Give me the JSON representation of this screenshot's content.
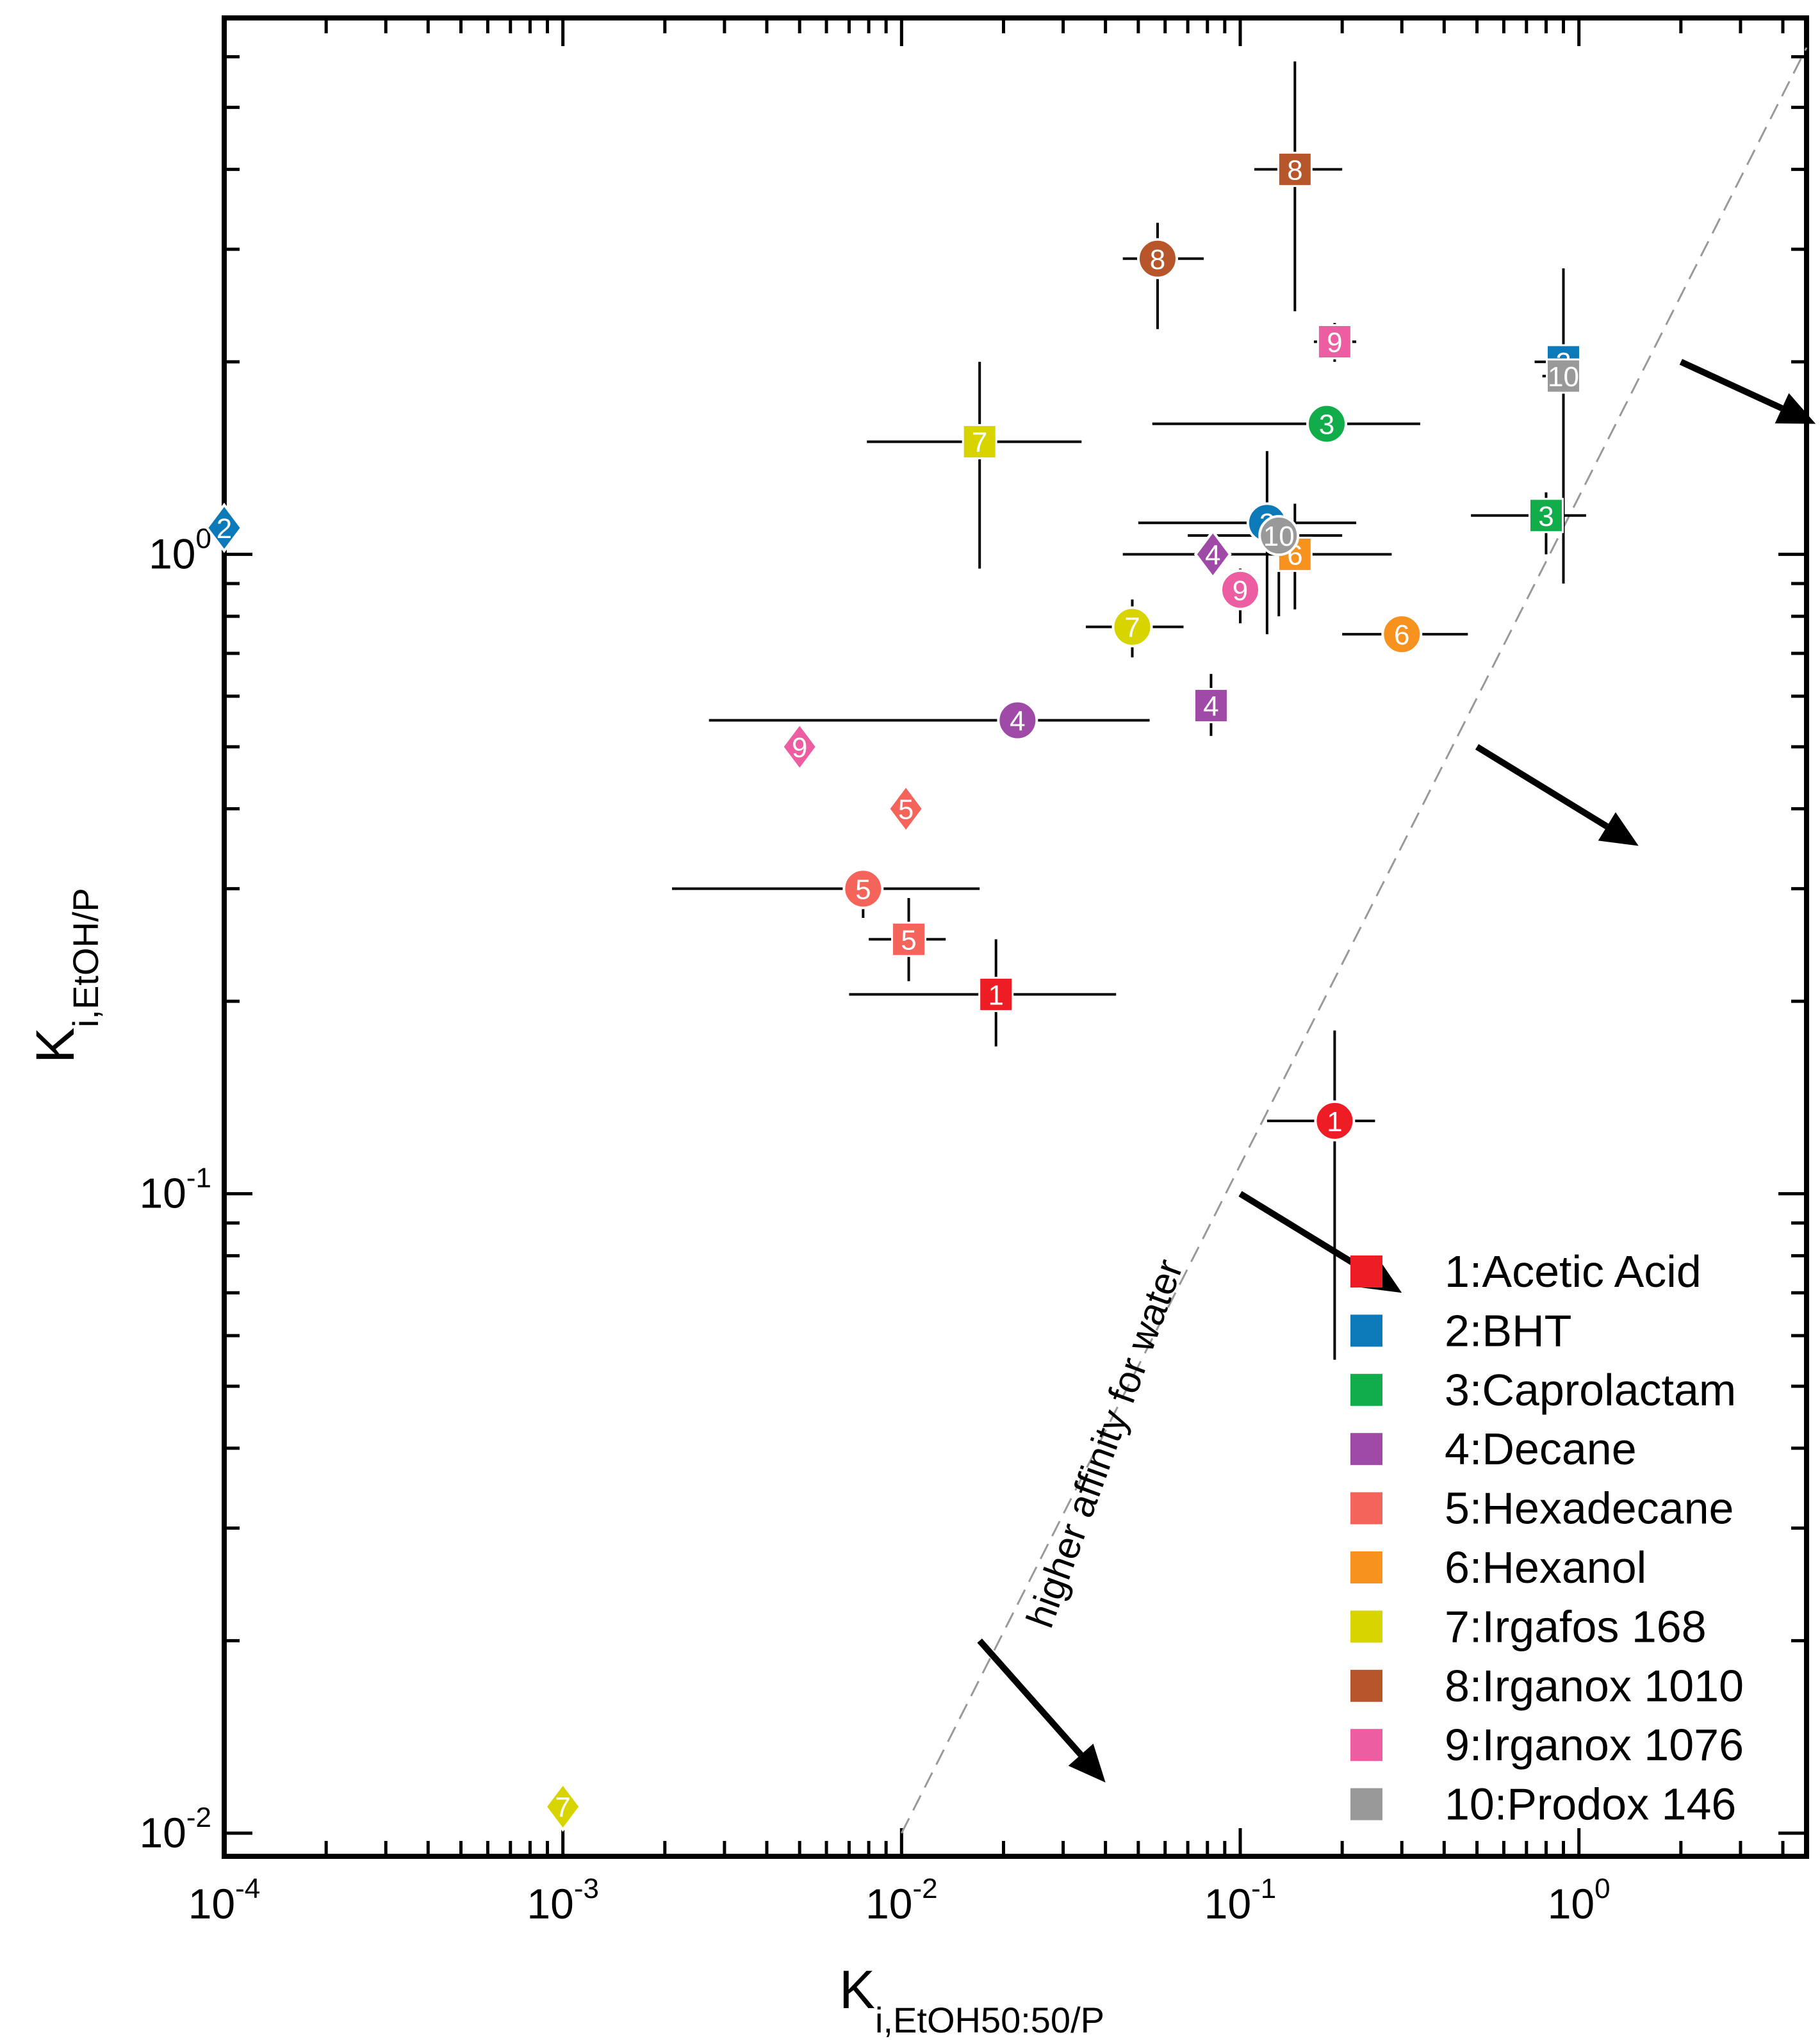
{
  "chart_data": {
    "type": "scatter",
    "title": "",
    "xlabel": {
      "main": "K",
      "sub": "i,EtOH50:50/P"
    },
    "ylabel": {
      "main": "K",
      "sub": "i,EtOH/P"
    },
    "xscale": "log",
    "yscale": "log",
    "xlim": [
      0.0001,
      4.7
    ],
    "ylim": [
      0.0092,
      6.9
    ],
    "x_ticks": [
      {
        "base": "10",
        "exp": "-4",
        "value": 0.0001
      },
      {
        "base": "10",
        "exp": "-3",
        "value": 0.001
      },
      {
        "base": "10",
        "exp": "-2",
        "value": 0.01
      },
      {
        "base": "10",
        "exp": "-1",
        "value": 0.1
      },
      {
        "base": "10",
        "exp": "0",
        "value": 1
      }
    ],
    "y_ticks": [
      {
        "base": "10",
        "exp": "-2",
        "value": 0.01
      },
      {
        "base": "10",
        "exp": "-1",
        "value": 0.1
      },
      {
        "base": "10",
        "exp": "0",
        "value": 1
      }
    ],
    "grid": false,
    "legend": {
      "position": "bottom-right",
      "entries": [
        {
          "id": 1,
          "label": "1:Acetic Acid",
          "color": "#ee1c24"
        },
        {
          "id": 2,
          "label": "2:BHT",
          "color": "#0c79b8"
        },
        {
          "id": 3,
          "label": "3:Caprolactam",
          "color": "#12ad4b"
        },
        {
          "id": 4,
          "label": "4:Decane",
          "color": "#a04aa8"
        },
        {
          "id": 5,
          "label": "5:Hexadecane",
          "color": "#f4645a"
        },
        {
          "id": 6,
          "label": "6:Hexanol",
          "color": "#f7921e"
        },
        {
          "id": 7,
          "label": "7:Irgafos 168",
          "color": "#d7d400"
        },
        {
          "id": 8,
          "label": "8:Irganox 1010",
          "color": "#b6562a"
        },
        {
          "id": 9,
          "label": "9:Irganox 1076",
          "color": "#ec5da1"
        },
        {
          "id": 10,
          "label": "10:Prodox 146",
          "color": "#999999"
        }
      ]
    },
    "reference_line": {
      "style": "dashed",
      "x": [
        0.01,
        4.7
      ],
      "y": [
        0.01,
        6.2
      ]
    },
    "annotation": {
      "text": "higher affinity for water",
      "arrows": [
        {
          "from": [
            0.017,
            0.02
          ],
          "to": [
            0.04,
            0.012
          ]
        },
        {
          "from": [
            0.1,
            0.1
          ],
          "to": [
            0.3,
            0.07
          ]
        },
        {
          "from": [
            0.5,
            0.5
          ],
          "to": [
            1.5,
            0.35
          ]
        },
        {
          "from": [
            2.0,
            2.0
          ],
          "to": [
            5.0,
            1.6
          ]
        }
      ]
    },
    "series": [
      {
        "compound": 1,
        "marker": "square",
        "label": "1",
        "x": 0.019,
        "y": 0.205,
        "xerr": [
          0.007,
          0.043
        ],
        "yerr": [
          0.17,
          0.25
        ]
      },
      {
        "compound": 1,
        "marker": "circle",
        "label": "1",
        "x": 0.19,
        "y": 0.13,
        "xerr": [
          0.12,
          0.25
        ],
        "yerr": [
          0.055,
          0.18
        ]
      },
      {
        "compound": 2,
        "marker": "square",
        "label": "2",
        "x": 0.9,
        "y": 2.0,
        "xerr": [
          0.74,
          1.0
        ],
        "yerr": [
          0.9,
          2.8
        ]
      },
      {
        "compound": 2,
        "marker": "circle",
        "label": "2",
        "x": 0.12,
        "y": 1.12,
        "xerr": [
          0.05,
          0.22
        ],
        "yerr": [
          0.75,
          1.45
        ]
      },
      {
        "compound": 2,
        "marker": "diamond",
        "label": "2",
        "x": 0.0001,
        "y": 1.1
      },
      {
        "compound": 3,
        "marker": "square",
        "label": "3",
        "x": 0.8,
        "y": 1.15,
        "xerr": [
          0.48,
          1.05
        ],
        "yerr": [
          1.0,
          1.25
        ]
      },
      {
        "compound": 3,
        "marker": "circle",
        "label": "3",
        "x": 0.18,
        "y": 1.6,
        "xerr": [
          0.055,
          0.34
        ],
        "yerr": [
          1.55,
          1.7
        ]
      },
      {
        "compound": 4,
        "marker": "square",
        "label": "4",
        "x": 0.082,
        "y": 0.58,
        "xerr": [
          0.075,
          0.09
        ],
        "yerr": [
          0.52,
          0.65
        ]
      },
      {
        "compound": 4,
        "marker": "circle",
        "label": "4",
        "x": 0.022,
        "y": 0.55,
        "xerr": [
          0.0027,
          0.054
        ],
        "yerr": [
          0.53,
          0.58
        ]
      },
      {
        "compound": 4,
        "marker": "diamond",
        "label": "4",
        "x": 0.083,
        "y": 1.0
      },
      {
        "compound": 5,
        "marker": "square",
        "label": "5",
        "x": 0.0105,
        "y": 0.25,
        "xerr": [
          0.008,
          0.0135
        ],
        "yerr": [
          0.215,
          0.29
        ]
      },
      {
        "compound": 5,
        "marker": "circle",
        "label": "5",
        "x": 0.0077,
        "y": 0.3,
        "xerr": [
          0.0021,
          0.017
        ],
        "yerr": [
          0.27,
          0.31
        ]
      },
      {
        "compound": 5,
        "marker": "diamond",
        "label": "5",
        "x": 0.0103,
        "y": 0.4
      },
      {
        "compound": 6,
        "marker": "square",
        "label": "6",
        "x": 0.145,
        "y": 1.0,
        "xerr": [
          0.045,
          0.28
        ],
        "yerr": [
          0.82,
          1.2
        ]
      },
      {
        "compound": 6,
        "marker": "circle",
        "label": "6",
        "x": 0.3,
        "y": 0.75,
        "xerr": [
          0.2,
          0.47
        ],
        "yerr": [
          0.73,
          0.77
        ]
      },
      {
        "compound": 7,
        "marker": "square",
        "label": "7",
        "x": 0.017,
        "y": 1.5,
        "xerr": [
          0.0079,
          0.034
        ],
        "yerr": [
          0.95,
          2.0
        ]
      },
      {
        "compound": 7,
        "marker": "circle",
        "label": "7",
        "x": 0.048,
        "y": 0.77,
        "xerr": [
          0.035,
          0.068
        ],
        "yerr": [
          0.69,
          0.85
        ]
      },
      {
        "compound": 7,
        "marker": "diamond",
        "label": "7",
        "x": 0.001,
        "y": 0.011
      },
      {
        "compound": 8,
        "marker": "square",
        "label": "8",
        "x": 0.145,
        "y": 4.0,
        "xerr": [
          0.11,
          0.2
        ],
        "yerr": [
          2.4,
          5.9
        ]
      },
      {
        "compound": 8,
        "marker": "circle",
        "label": "8",
        "x": 0.057,
        "y": 2.9,
        "xerr": [
          0.045,
          0.078
        ],
        "yerr": [
          2.25,
          3.3
        ]
      },
      {
        "compound": 9,
        "marker": "square",
        "label": "9",
        "x": 0.19,
        "y": 2.15,
        "xerr": [
          0.165,
          0.22
        ],
        "yerr": [
          2.0,
          2.3
        ]
      },
      {
        "compound": 9,
        "marker": "circle",
        "label": "9",
        "x": 0.1,
        "y": 0.88,
        "xerr": [
          0.095,
          0.11
        ],
        "yerr": [
          0.78,
          0.95
        ]
      },
      {
        "compound": 9,
        "marker": "diamond",
        "label": "9",
        "x": 0.005,
        "y": 0.5
      },
      {
        "compound": 10,
        "marker": "square",
        "label": "10",
        "x": 0.9,
        "y": 1.9,
        "xerr": [
          0.78,
          1.0
        ],
        "yerr": [
          1.75,
          2.05
        ]
      },
      {
        "compound": 10,
        "marker": "circle",
        "label": "10",
        "x": 0.13,
        "y": 1.07,
        "xerr": [
          0.07,
          0.2
        ],
        "yerr": [
          0.8,
          1.15
        ]
      }
    ]
  }
}
